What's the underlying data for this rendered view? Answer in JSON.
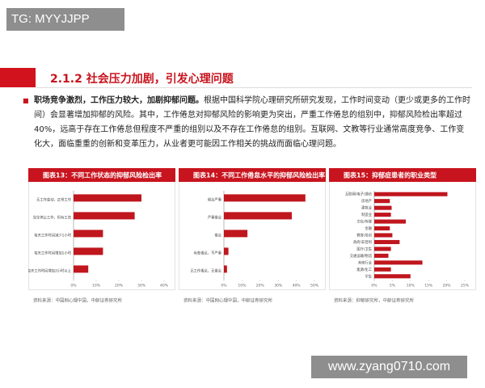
{
  "watermark": "TG: MYYJJPP",
  "footer_watermark": "www.zyang0710.com",
  "heading": "2.1.2 社会压力加剧，引发心理问题",
  "intro": {
    "bold": "职场竞争激烈，工作压力较大，加剧抑郁问题。",
    "text": "根据中国科学院心理研究所研究发现，工作时间变动（更少或更多的工作时间）会显著增加抑郁的风险。其中，工作倦怠对抑郁风险的影响更为突出，严重工作倦怠的组别中，抑郁风险检出率超过40%，远高于存在工作倦怠但程度不严重的组别以及不存在工作倦怠的组别。互联网、文教等行业通常高度竞争、工作变化大，面临重重的创新和变革压力，从业者更可能因工作相关的挑战而面临心理问题。"
  },
  "chart_data": [
    {
      "type": "barh",
      "title": "图表13：不同工作状态的抑郁风险检出率",
      "color": "#c0161e",
      "categories": [
        "无工作变动，正常工作",
        "完全停止工作，但有工资",
        "每天工作时间减少1小时",
        "每天工作时间增加1小时",
        "每天工作时间增加2小时以上"
      ],
      "values": [
        30,
        27,
        13,
        13,
        6.5
      ],
      "xlim": [
        0,
        40
      ],
      "xticks": [
        {
          "value": 0,
          "label": "0%"
        },
        {
          "value": 10,
          "label": "10%"
        },
        {
          "value": 20,
          "label": "20%"
        },
        {
          "value": 30,
          "label": "30%"
        },
        {
          "value": 40,
          "label": "40%"
        }
      ],
      "source": "资料来源：中国网心理中国，中邮证券研究所"
    },
    {
      "type": "barh",
      "title": "图表14：不同工作倦怠水平的抑郁风险检出率",
      "color": "#c0161e",
      "categories": [
        "倦怠严重",
        "严重倦怠",
        "倦怠",
        "有些倦怠，不严重",
        "无工作倦怠，无倦怠"
      ],
      "values": [
        45,
        37.5,
        13,
        2.5,
        1.7
      ],
      "xlim": [
        0,
        50
      ],
      "xticks": [
        {
          "value": 0,
          "label": "0%"
        },
        {
          "value": 10,
          "label": "10%"
        },
        {
          "value": 20,
          "label": "20%"
        },
        {
          "value": 30,
          "label": "30%"
        },
        {
          "value": 40,
          "label": "40%"
        },
        {
          "value": 50,
          "label": "50%"
        }
      ],
      "source": "资料来源：中国网心理中国，中邮证券研究所"
    },
    {
      "type": "barh",
      "title": "图表15：抑郁症患者的职业类型",
      "color": "#c0161e",
      "categories": [
        "互联网/电子/通信",
        "房地产",
        "建筑业",
        "制造业",
        "文化/传媒",
        "金融",
        "教育/培训",
        "政府/非营利",
        "医疗/卫生",
        "交通运输/物流",
        "其他行业",
        "能源/化工",
        "学生"
      ],
      "values": [
        20.2,
        4.3,
        4.8,
        4.6,
        8.7,
        4.3,
        5,
        7,
        4.6,
        3.9,
        13.3,
        4.6,
        10
      ],
      "xlim": [
        0,
        25
      ],
      "xticks": [
        {
          "value": 0,
          "label": "0%"
        },
        {
          "value": 5,
          "label": "5%"
        },
        {
          "value": 10,
          "label": "10%"
        },
        {
          "value": 15,
          "label": "15%"
        },
        {
          "value": 20,
          "label": "20%"
        },
        {
          "value": 25,
          "label": "25%"
        }
      ],
      "source": "资料来源：抑郁研究所，中邮证券研究所"
    }
  ]
}
